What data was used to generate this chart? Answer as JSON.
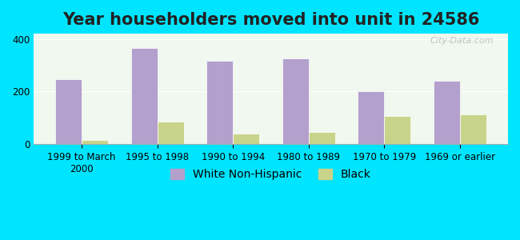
{
  "title": "Year householders moved into unit in 24586",
  "categories": [
    "1999 to March\n2000",
    "1995 to 1998",
    "1990 to 1994",
    "1980 to 1989",
    "1970 to 1979",
    "1969 or earlier"
  ],
  "white_values": [
    248,
    365,
    318,
    325,
    200,
    242
  ],
  "black_values": [
    14,
    85,
    40,
    45,
    105,
    112
  ],
  "white_color": "#b3a0cc",
  "black_color": "#c8d48a",
  "background_outer": "#00e5ff",
  "background_inner": "#f0f8ef",
  "ylim": [
    0,
    420
  ],
  "yticks": [
    0,
    200,
    400
  ],
  "bar_width": 0.35,
  "title_fontsize": 15,
  "tick_fontsize": 8.5,
  "legend_fontsize": 10,
  "watermark": "City-Data.com"
}
